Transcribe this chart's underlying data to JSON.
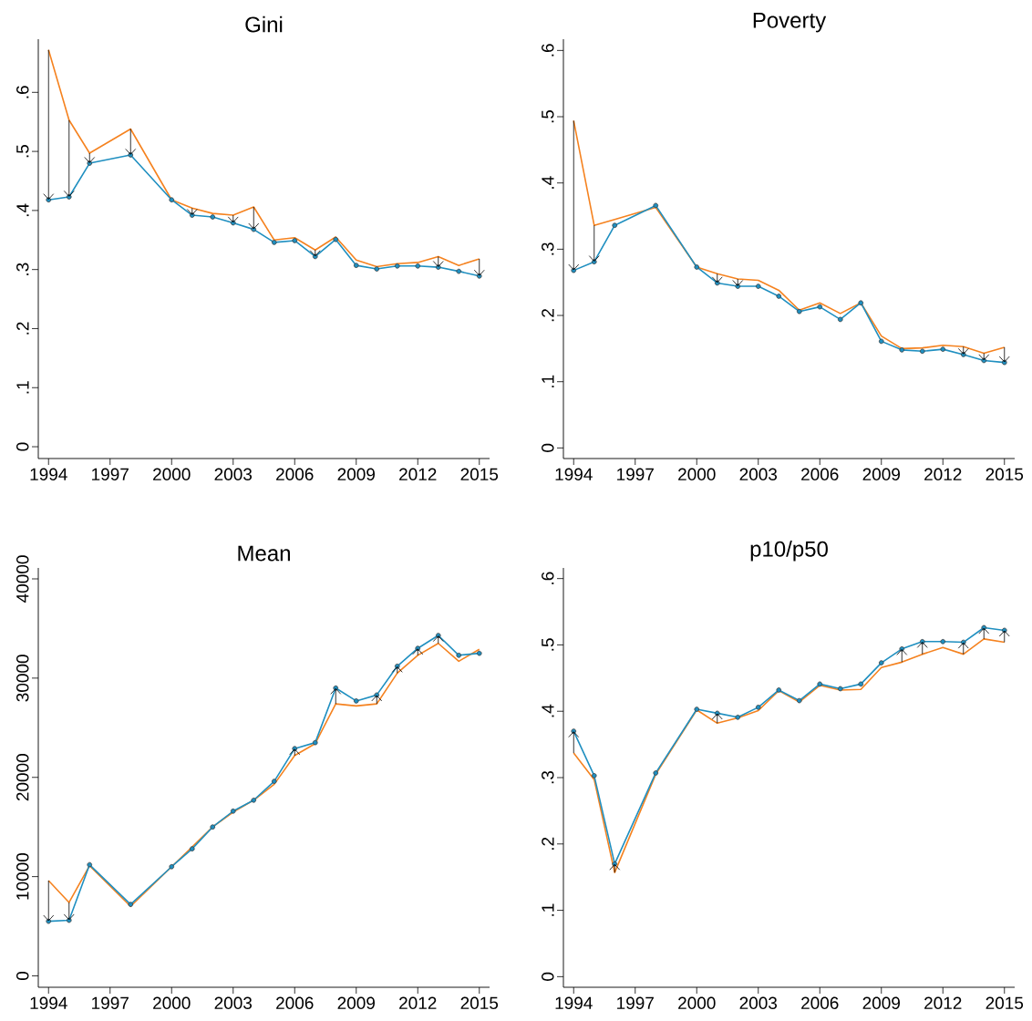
{
  "chart_data": [
    {
      "type": "line",
      "title": "Gini",
      "x": [
        1994,
        1995,
        1996,
        1998,
        2000,
        2001,
        2002,
        2003,
        2004,
        2005,
        2006,
        2007,
        2008,
        2009,
        2010,
        2011,
        2012,
        2013,
        2014,
        2015
      ],
      "xlim": [
        1993.5,
        2015.5
      ],
      "xticks": [
        1994,
        1997,
        2000,
        2003,
        2006,
        2009,
        2012,
        2015
      ],
      "ylim": [
        -0.02,
        0.69
      ],
      "yticks": [
        0,
        {
          "value": 0.1,
          "label": ".1"
        },
        {
          "value": 0.2,
          "label": ".2"
        },
        {
          "value": 0.3,
          "label": ".3"
        },
        {
          "value": 0.4,
          "label": ".4"
        },
        {
          "value": 0.5,
          "label": ".5"
        },
        {
          "value": 0.6,
          "label": ".6"
        }
      ],
      "series": [
        {
          "color": "#f5821f",
          "marker": "none",
          "values": [
            0.672,
            0.553,
            0.497,
            0.538,
            0.418,
            0.404,
            0.395,
            0.392,
            0.406,
            0.35,
            0.354,
            0.333,
            0.355,
            0.316,
            0.305,
            0.31,
            0.312,
            0.322,
            0.307,
            0.318
          ]
        },
        {
          "color": "#1f8fc0",
          "marker": "circle",
          "values": [
            0.418,
            0.423,
            0.48,
            0.494,
            0.418,
            0.392,
            0.389,
            0.379,
            0.368,
            0.346,
            0.349,
            0.322,
            0.351,
            0.307,
            0.301,
            0.306,
            0.306,
            0.304,
            0.297,
            0.289
          ]
        }
      ]
    },
    {
      "type": "line",
      "title": "Poverty",
      "x": [
        1994,
        1995,
        1996,
        1998,
        2000,
        2001,
        2002,
        2003,
        2004,
        2005,
        2006,
        2007,
        2008,
        2009,
        2010,
        2011,
        2012,
        2013,
        2014,
        2015
      ],
      "xlim": [
        1993.5,
        2015.5
      ],
      "xticks": [
        1994,
        1997,
        2000,
        2003,
        2006,
        2009,
        2012,
        2015
      ],
      "ylim": [
        -0.016,
        0.617
      ],
      "yticks": [
        0,
        {
          "value": 0.1,
          "label": ".1"
        },
        {
          "value": 0.2,
          "label": ".2"
        },
        {
          "value": 0.3,
          "label": ".3"
        },
        {
          "value": 0.4,
          "label": ".4"
        },
        {
          "value": 0.5,
          "label": ".5"
        },
        {
          "value": 0.6,
          "label": ".6"
        }
      ],
      "series": [
        {
          "color": "#f5821f",
          "marker": "none",
          "values": [
            0.494,
            0.336,
            0.345,
            0.363,
            0.273,
            0.263,
            0.255,
            0.253,
            0.238,
            0.208,
            0.219,
            0.203,
            0.219,
            0.169,
            0.15,
            0.151,
            0.155,
            0.153,
            0.143,
            0.152
          ]
        },
        {
          "color": "#1f8fc0",
          "marker": "circle",
          "values": [
            0.268,
            0.281,
            0.336,
            0.366,
            0.273,
            0.249,
            0.244,
            0.244,
            0.229,
            0.206,
            0.213,
            0.194,
            0.219,
            0.161,
            0.148,
            0.146,
            0.149,
            0.141,
            0.132,
            0.129
          ]
        }
      ]
    },
    {
      "type": "line",
      "title": "Mean",
      "x": [
        1994,
        1995,
        1996,
        1998,
        2000,
        2001,
        2002,
        2003,
        2004,
        2005,
        2006,
        2007,
        2008,
        2009,
        2010,
        2011,
        2012,
        2013,
        2014,
        2015
      ],
      "xlim": [
        1993.5,
        2015.5
      ],
      "xticks": [
        1994,
        1997,
        2000,
        2003,
        2006,
        2009,
        2012,
        2015
      ],
      "ylim": [
        -1150,
        41100
      ],
      "yticks": [
        0,
        10000,
        20000,
        30000,
        40000
      ],
      "series": [
        {
          "color": "#f5821f",
          "marker": "none",
          "values": [
            9600,
            7400,
            11100,
            7000,
            11000,
            13000,
            15000,
            16500,
            17700,
            19300,
            22200,
            23400,
            27400,
            27200,
            27400,
            30500,
            32300,
            33500,
            31700,
            32900
          ]
        },
        {
          "color": "#1f8fc0",
          "marker": "circle",
          "values": [
            5500,
            5600,
            11200,
            7200,
            11000,
            12800,
            15000,
            16600,
            17700,
            19600,
            22900,
            23500,
            29000,
            27700,
            28300,
            31200,
            33000,
            34300,
            32300,
            32500
          ]
        }
      ]
    },
    {
      "type": "line",
      "title": "p10/p50",
      "x": [
        1994,
        1995,
        1996,
        1998,
        2000,
        2001,
        2002,
        2003,
        2004,
        2005,
        2006,
        2007,
        2008,
        2009,
        2010,
        2011,
        2012,
        2013,
        2014,
        2015
      ],
      "xlim": [
        1993.5,
        2015.5
      ],
      "xticks": [
        1994,
        1997,
        2000,
        2003,
        2006,
        2009,
        2012,
        2015
      ],
      "ylim": [
        -0.016,
        0.616
      ],
      "yticks": [
        0,
        {
          "value": 0.1,
          "label": ".1"
        },
        {
          "value": 0.2,
          "label": ".2"
        },
        {
          "value": 0.3,
          "label": ".3"
        },
        {
          "value": 0.4,
          "label": ".4"
        },
        {
          "value": 0.5,
          "label": ".5"
        },
        {
          "value": 0.6,
          "label": ".6"
        }
      ],
      "series": [
        {
          "color": "#f5821f",
          "marker": "none",
          "values": [
            0.337,
            0.297,
            0.157,
            0.305,
            0.402,
            0.382,
            0.39,
            0.401,
            0.431,
            0.414,
            0.439,
            0.432,
            0.433,
            0.466,
            0.474,
            0.486,
            0.496,
            0.486,
            0.509,
            0.504
          ]
        },
        {
          "color": "#1f8fc0",
          "marker": "circle",
          "values": [
            0.37,
            0.303,
            0.17,
            0.307,
            0.403,
            0.397,
            0.391,
            0.406,
            0.432,
            0.416,
            0.441,
            0.434,
            0.441,
            0.473,
            0.494,
            0.505,
            0.505,
            0.504,
            0.526,
            0.522
          ]
        }
      ]
    }
  ]
}
